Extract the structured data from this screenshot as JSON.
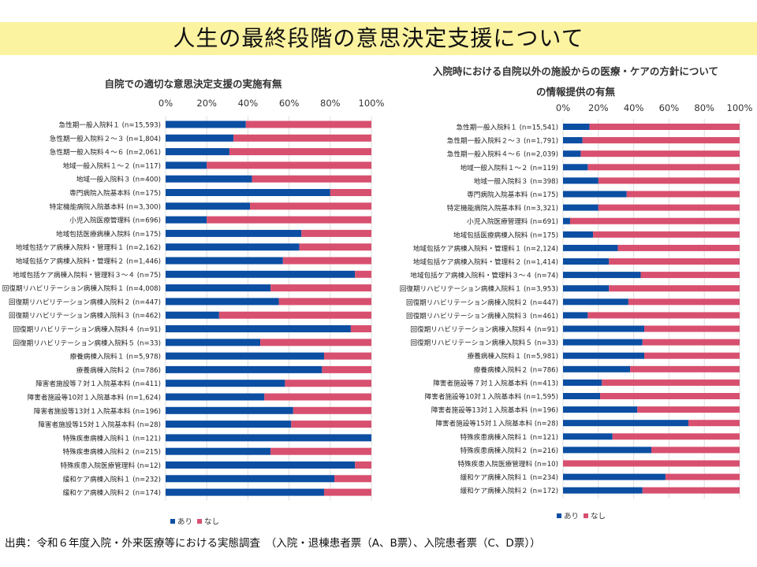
{
  "slide": {
    "title": "人生の最終段階の意思決定支援について",
    "source": "出典：令和６年度入院・外来医療等における実態調査　（入院・退棟患者票（A、B票）、入院患者票（C、D票））"
  },
  "colors": {
    "ari": "#0b4ea2",
    "nashi": "#d8506f",
    "gridline": "#dddddd"
  },
  "chart_data": [
    {
      "type": "bar",
      "orientation": "horizontal",
      "stacked": true,
      "title": "自院での適切な意思決定支援の実施有無",
      "xlim": [
        0,
        100
      ],
      "x_ticks": [
        "0%",
        "20%",
        "40%",
        "60%",
        "80%",
        "100%"
      ],
      "grid": true,
      "legend_position": "bottom-left",
      "categories": [
        "急性期一般入院料１ (n=15,593)",
        "急性期一般入院料２～３ (n=1,804)",
        "急性期一般入院料４～６ (n=2,061)",
        "地域一般入院料１～２ (n=117)",
        "地域一般入院料３ (n=400)",
        "専門病院入院基本料 (n=175)",
        "特定機能病院入院基本料 (n=3,300)",
        "小児入院医療管理料 (n=696)",
        "地域包括医療病棟入院料 (n=175)",
        "地域包括ケア病棟入院料・管理料１ (n=2,162)",
        "地域包括ケア病棟入院料・管理料２ (n=1,446)",
        "地域包括ケア病棟入院料・管理料３～４ (n=75)",
        "回復期リハビリテーション病棟入院料１ (n=4,008)",
        "回復期リハビリテーション病棟入院料２ (n=447)",
        "回復期リハビリテーション病棟入院料３ (n=462)",
        "回復期リハビリテーション病棟入院料４ (n=91)",
        "回復期リハビリテーション病棟入院料５ (n=33)",
        "療養病棟入院料１ (n=5,978)",
        "療養病棟入院料２ (n=786)",
        "障害者施設等７対１入院基本料 (n=411)",
        "障害者施設等10対１入院基本料 (n=1,624)",
        "障害者施設等13対１入院基本料 (n=196)",
        "障害者施設等15対１入院基本料 (n=28)",
        "特殊疾患病棟入院料１ (n=121)",
        "特殊疾患病棟入院料２ (n=215)",
        "特殊疾患入院医療管理料 (n=12)",
        "緩和ケア病棟入院料１ (n=232)",
        "緩和ケア病棟入院料２ (n=174)"
      ],
      "series": [
        {
          "name": "あり",
          "values": [
            39,
            33,
            31,
            20,
            42,
            80,
            41,
            20,
            66,
            65,
            57,
            92,
            51,
            55,
            26,
            90,
            46,
            77,
            76,
            58,
            48,
            62,
            61,
            100,
            51,
            92,
            82,
            77
          ]
        },
        {
          "name": "なし",
          "values": [
            61,
            67,
            69,
            80,
            58,
            20,
            59,
            80,
            34,
            35,
            43,
            8,
            49,
            45,
            74,
            10,
            54,
            23,
            24,
            42,
            52,
            38,
            39,
            0,
            49,
            8,
            18,
            23
          ]
        }
      ]
    },
    {
      "type": "bar",
      "orientation": "horizontal",
      "stacked": true,
      "title": "入院時における自院以外の施設からの医療・ケアの方針について",
      "subtitle": "の情報提供の有無",
      "xlim": [
        0,
        100
      ],
      "x_ticks": [
        "0%",
        "20%",
        "40%",
        "60%",
        "80%",
        "100%"
      ],
      "grid": true,
      "legend_position": "bottom-left",
      "categories": [
        "急性期一般入院料１ (n=15,541)",
        "急性期一般入院料２～３ (n=1,791)",
        "急性期一般入院料４～６ (n=2,039)",
        "地域一般入院料１～２ (n=119)",
        "地域一般入院料３ (n=398)",
        "専門病院入院基本料 (n=175)",
        "特定機能病院入院基本料 (n=3,321)",
        "小児入院医療管理料 (n=691)",
        "地域包括医療病棟入院料 (n=175)",
        "地域包括ケア病棟入院料・管理料１ (n=2,124)",
        "地域包括ケア病棟入院料・管理料２ (n=1,414)",
        "地域包括ケア病棟入院料・管理料３～４ (n=74)",
        "回復期リハビリテーション病棟入院料１ (n=3,953)",
        "回復期リハビリテーション病棟入院料２ (n=447)",
        "回復期リハビリテーション病棟入院料３ (n=461)",
        "回復期リハビリテーション病棟入院料４ (n=91)",
        "回復期リハビリテーション病棟入院料５ (n=33)",
        "療養病棟入院料１ (n=5,981)",
        "療養病棟入院料２ (n=786)",
        "障害者施設等７対１入院基本料 (n=413)",
        "障害者施設等10対１入院基本料 (n=1,595)",
        "障害者施設等13対１入院基本料 (n=196)",
        "障害者施設等15対１入院基本料 (n=28)",
        "特殊疾患病棟入院料１ (n=121)",
        "特殊疾患病棟入院料２ (n=216)",
        "特殊疾患入院医療管理料 (n=10)",
        "緩和ケア病棟入院料１ (n=234)",
        "緩和ケア病棟入院料２ (n=172)"
      ],
      "series": [
        {
          "name": "あり",
          "values": [
            15,
            11,
            10,
            14,
            20,
            36,
            20,
            4,
            17,
            31,
            26,
            44,
            26,
            37,
            14,
            46,
            45,
            46,
            38,
            22,
            21,
            42,
            71,
            28,
            50,
            0,
            58,
            45
          ]
        },
        {
          "name": "なし",
          "values": [
            85,
            89,
            90,
            86,
            80,
            64,
            80,
            96,
            83,
            69,
            74,
            56,
            74,
            63,
            86,
            54,
            55,
            54,
            62,
            78,
            79,
            58,
            29,
            72,
            50,
            100,
            42,
            55
          ]
        }
      ]
    }
  ]
}
